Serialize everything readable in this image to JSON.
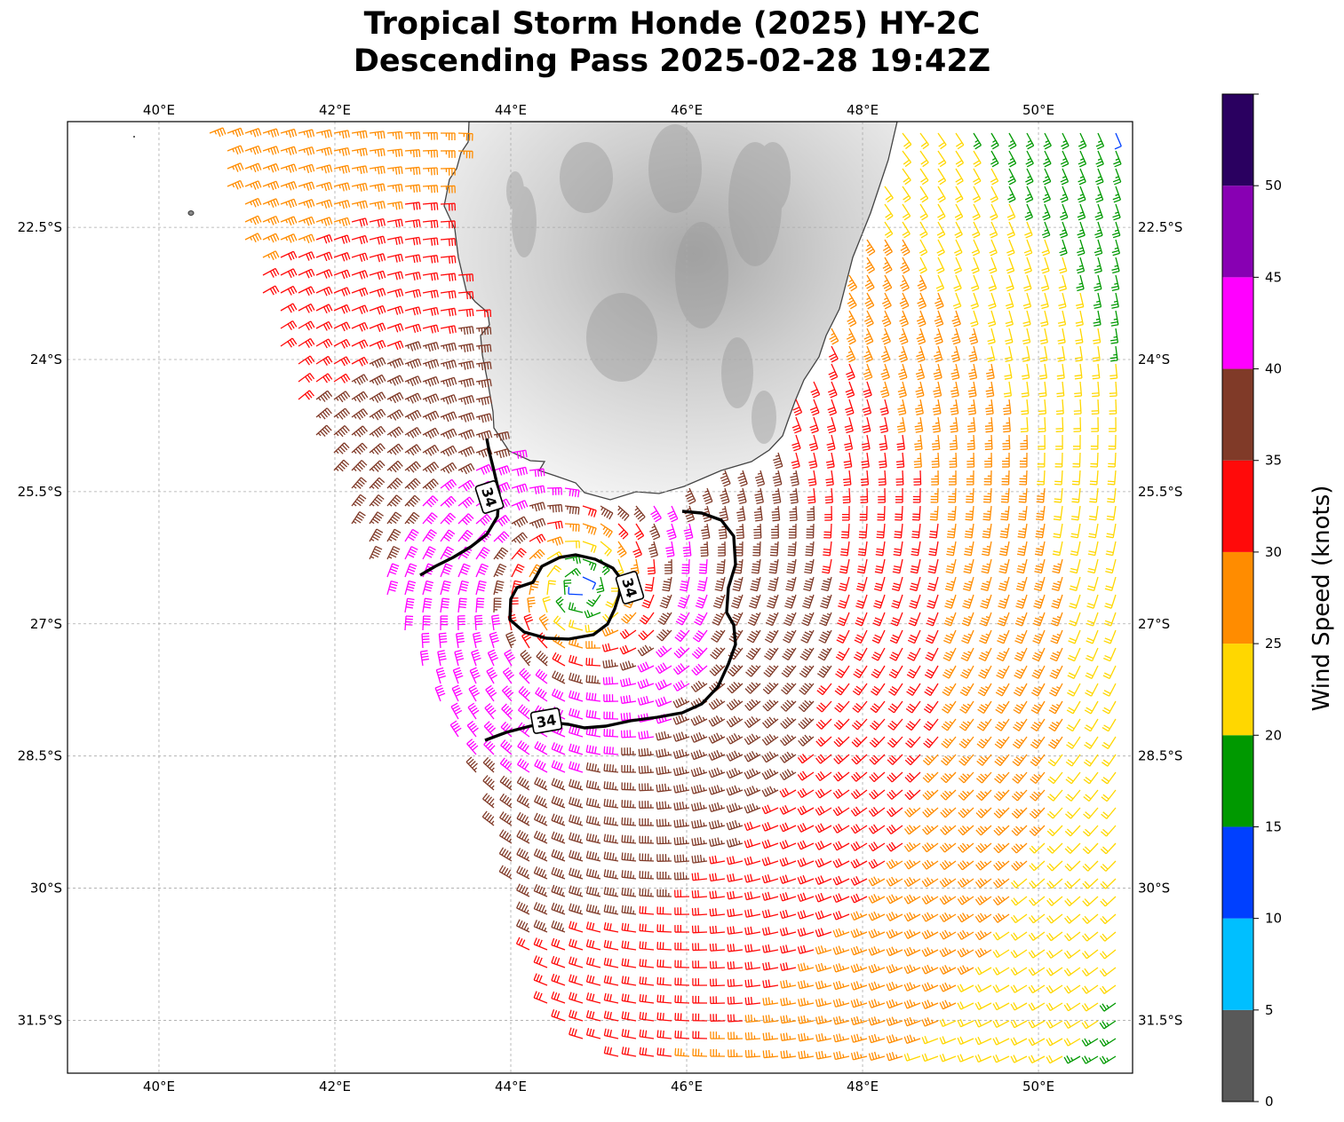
{
  "title": {
    "line1": "Tropical Storm Honde (2025) HY-2C",
    "line2": "Descending Pass 2025-02-28 19:42Z"
  },
  "map": {
    "lon_range": [
      38.96,
      51.07
    ],
    "lat_range": [
      -32.1,
      -21.3
    ],
    "lon_ticks": [
      {
        "value": 40,
        "label": "40°E"
      },
      {
        "value": 42,
        "label": "42°E"
      },
      {
        "value": 44,
        "label": "44°E"
      },
      {
        "value": 46,
        "label": "46°E"
      },
      {
        "value": 48,
        "label": "48°E"
      },
      {
        "value": 50,
        "label": "50°E"
      }
    ],
    "lat_ticks": [
      {
        "value": -22.5,
        "label": "22.5°S"
      },
      {
        "value": -24,
        "label": "24°S"
      },
      {
        "value": -25.5,
        "label": "25.5°S"
      },
      {
        "value": -27,
        "label": "27°S"
      },
      {
        "value": -28.5,
        "label": "28.5°S"
      },
      {
        "value": -30,
        "label": "30°S"
      },
      {
        "value": -31.5,
        "label": "31.5°S"
      }
    ],
    "gridlines": true,
    "land_name": "Madagascar",
    "storm_center": {
      "lon": 44.8,
      "lat": -26.6
    },
    "contour_label": "34",
    "contour_color": "#000000",
    "land_color": "#e6e6e6",
    "coast_color": "#444444"
  },
  "colorbar": {
    "label": "Wind Speed (knots)",
    "orientation": "right",
    "bins": [
      {
        "min": 0,
        "max": 5,
        "color": "#595959"
      },
      {
        "min": 5,
        "max": 10,
        "color": "#00bfff"
      },
      {
        "min": 10,
        "max": 15,
        "color": "#0040ff"
      },
      {
        "min": 15,
        "max": 20,
        "color": "#009900"
      },
      {
        "min": 20,
        "max": 25,
        "color": "#ffd700"
      },
      {
        "min": 25,
        "max": 30,
        "color": "#ff8c00"
      },
      {
        "min": 30,
        "max": 35,
        "color": "#ff0a0a"
      },
      {
        "min": 35,
        "max": 40,
        "color": "#803a28"
      },
      {
        "min": 40,
        "max": 45,
        "color": "#ff00ff"
      },
      {
        "min": 45,
        "max": 50,
        "color": "#8800b3"
      },
      {
        "min": 50,
        "max": 55,
        "color": "#2a0060"
      }
    ],
    "tick_labels": [
      "0",
      "5",
      "10",
      "15",
      "20",
      "25",
      "30",
      "35",
      "40",
      "45",
      "50"
    ]
  }
}
